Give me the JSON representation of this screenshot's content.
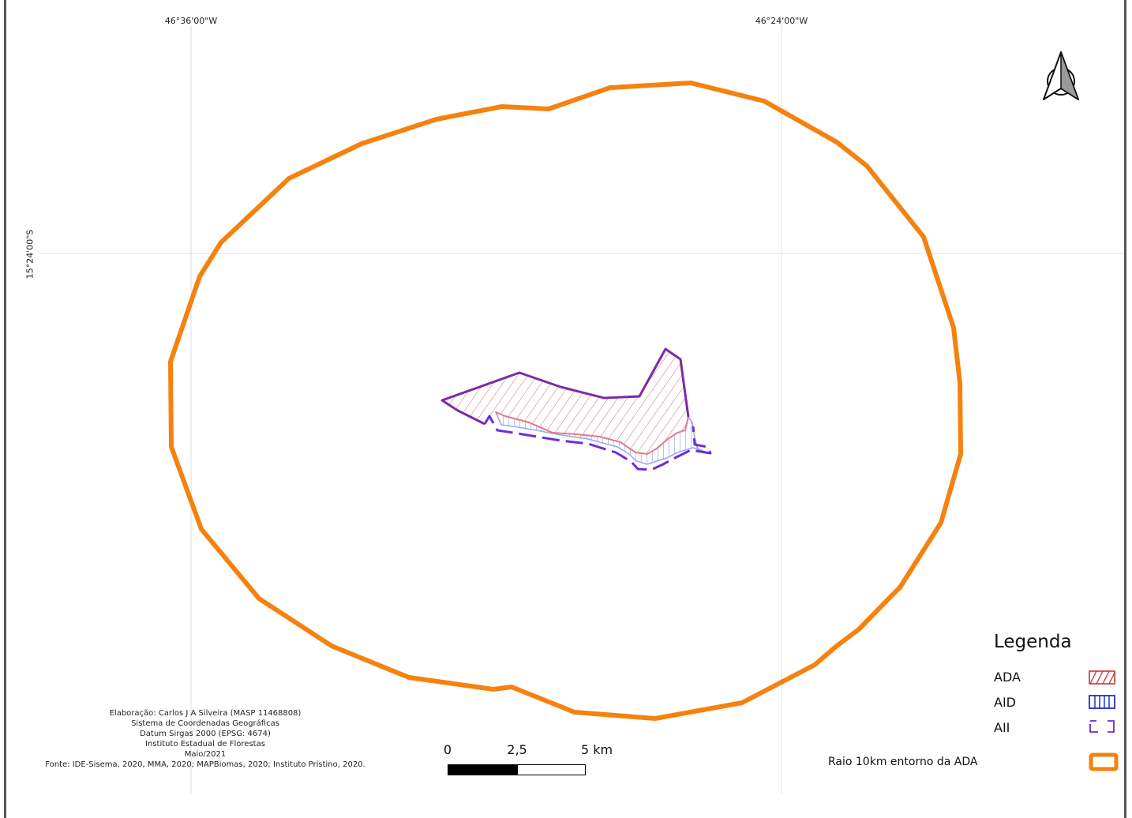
{
  "coordinates": {
    "lon_left": "46°36'00\"W",
    "lon_right": "46°24'00\"W",
    "lat_label": "15°24'00\"S"
  },
  "north_arrow": {
    "icon": "north-arrow-icon"
  },
  "legend": {
    "title": "Legenda",
    "items": [
      {
        "label": "ADA",
        "icon": "hatch-diagonal-red",
        "color": "#c62828"
      },
      {
        "label": "AID",
        "icon": "hatch-vertical-blue",
        "color": "#1f2fd6"
      },
      {
        "label": "AII",
        "icon": "dashed-outline-purple",
        "color": "#6a2fd8"
      }
    ],
    "buffer": {
      "label": "Raio 10km entorno da ADA",
      "icon": "orange-outline",
      "color": "#f5820f"
    }
  },
  "credits": {
    "line1": "Elaboração: Carlos J A Silveira (MASP 11468808)",
    "line2": "Sistema de Coordenadas Geográficas",
    "line3": "Datum Sirgas 2000 (EPSG: 4674)",
    "line4": "Instituto Estadual de Florestas",
    "line5": "Maio/2021",
    "line6": "Fonte: IDE-Sisema, 2020, MMA, 2020; MAPBiomas, 2020; Instituto Pristino, 2020."
  },
  "scale_bar": {
    "label_0": "0",
    "label_mid": "2,5",
    "label_end": "5 km"
  }
}
